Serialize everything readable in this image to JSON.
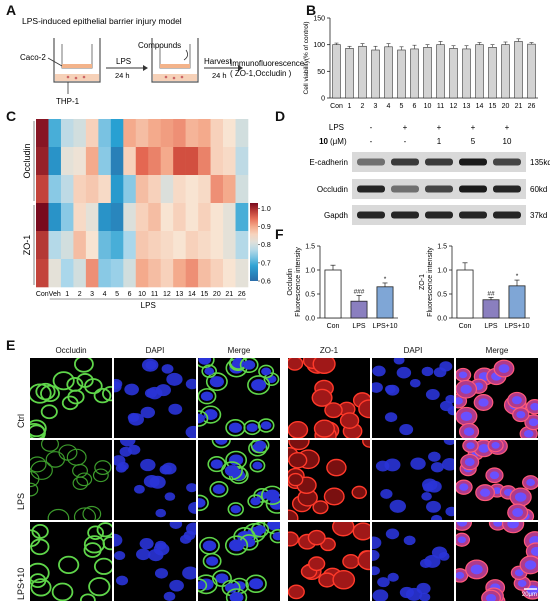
{
  "panel_letters": {
    "a": "A",
    "b": "B",
    "c": "C",
    "d": "D",
    "e": "E",
    "f": "F"
  },
  "panel_a": {
    "title": "LPS-induced epithelial barrier injury model",
    "caco2": "Caco-2",
    "thp1": "THP-1",
    "lps": "LPS",
    "time1": "24 h",
    "compounds": "Compounds",
    "harvest": "Harvest",
    "time2": "24 h",
    "readout1": "Immunofluorescence",
    "readout2": "( ZO-1,Occludin )"
  },
  "panel_b": {
    "chart_data": {
      "type": "bar",
      "ylabel": "Cell viability(% of control)",
      "ylim": [
        0,
        150
      ],
      "yticks": [
        0,
        50,
        100,
        150
      ],
      "categories": [
        "Con",
        "1",
        "2",
        "3",
        "4",
        "5",
        "6",
        "10",
        "11",
        "12",
        "13",
        "14",
        "15",
        "20",
        "21",
        "26"
      ],
      "values": [
        100,
        93,
        97,
        90,
        96,
        90,
        92,
        95,
        100,
        93,
        92,
        100,
        95,
        100,
        106,
        101
      ],
      "errors": [
        3,
        4,
        5,
        7,
        6,
        6,
        7,
        5,
        6,
        5,
        6,
        4,
        5,
        5,
        5,
        3
      ],
      "bar_color": "#d3d3d3"
    }
  },
  "panel_c": {
    "chart_data": {
      "type": "heatmap",
      "x_labels": [
        "Con",
        "Veh",
        "1",
        "2",
        "3",
        "4",
        "5",
        "6",
        "10",
        "11",
        "12",
        "13",
        "14",
        "15",
        "20",
        "21",
        "26"
      ],
      "x_group_label": "LPS",
      "row_groups": [
        "Occludin",
        "ZO-1"
      ],
      "colorbar_ticks": [
        1.0,
        0.9,
        0.8,
        0.7,
        0.6
      ],
      "colorbar_range": [
        0.6,
        1.03
      ],
      "values": [
        [
          1.02,
          0.7,
          0.78,
          0.8,
          0.86,
          0.73,
          0.68,
          0.9,
          0.88,
          0.9,
          0.91,
          0.92,
          0.89,
          0.9,
          0.86,
          0.84,
          0.8
        ],
        [
          1.01,
          0.66,
          0.82,
          0.83,
          0.9,
          0.74,
          0.63,
          0.86,
          0.95,
          0.93,
          0.9,
          0.97,
          0.97,
          0.93,
          0.86,
          0.85,
          0.78
        ],
        [
          0.98,
          0.74,
          0.78,
          0.86,
          0.87,
          0.85,
          0.67,
          0.74,
          0.88,
          0.86,
          0.81,
          0.85,
          0.84,
          0.85,
          0.92,
          0.9,
          0.8
        ],
        [
          1.03,
          0.66,
          0.74,
          0.85,
          0.82,
          0.66,
          0.64,
          0.81,
          0.86,
          0.88,
          0.84,
          0.86,
          0.84,
          0.86,
          0.84,
          0.82,
          0.7
        ],
        [
          0.99,
          0.77,
          0.8,
          0.88,
          0.84,
          0.72,
          0.7,
          0.76,
          0.87,
          0.86,
          0.85,
          0.84,
          0.86,
          0.85,
          0.84,
          0.82,
          0.77
        ],
        [
          0.98,
          0.82,
          0.76,
          0.8,
          0.92,
          0.74,
          0.75,
          0.8,
          0.9,
          0.88,
          0.86,
          0.9,
          0.92,
          0.88,
          0.86,
          0.84,
          0.82
        ]
      ]
    }
  },
  "panel_d": {
    "header_lps": "LPS",
    "header_dose_bold": "10",
    "header_dose_unit": "(μM)",
    "lps_signs": [
      "-",
      "+",
      "+",
      "+",
      "+"
    ],
    "doses": [
      "-",
      "-",
      "1",
      "5",
      "10"
    ],
    "bands": [
      {
        "name": "E-cadherin",
        "size": "135kd",
        "intensity": [
          0.55,
          0.8,
          0.8,
          0.95,
          0.75
        ]
      },
      {
        "name": "Occludin",
        "size": "60kd",
        "intensity": [
          0.9,
          0.55,
          0.75,
          0.95,
          0.9
        ]
      },
      {
        "name": "Gapdh",
        "size": "37kd",
        "intensity": [
          0.9,
          0.9,
          0.9,
          0.9,
          0.9
        ]
      }
    ]
  },
  "panel_f": {
    "charts": [
      {
        "type": "bar",
        "ylabel_line1": "Occludin",
        "ylabel_line2": "Fluorescence intensity",
        "ylim": [
          0,
          1.5
        ],
        "yticks": [
          "0.0",
          "0.5",
          "1.0",
          "1.5"
        ],
        "categories": [
          "Con",
          "LPS",
          "LPS+10"
        ],
        "values": [
          1.0,
          0.35,
          0.65
        ],
        "errors": [
          0.1,
          0.12,
          0.08
        ],
        "sig": [
          "",
          "###",
          "*"
        ],
        "colors": [
          "#ffffff",
          "#8a7fbf",
          "#7fa6d6"
        ]
      },
      {
        "type": "bar",
        "ylabel_line1": "ZO-1",
        "ylabel_line2": "Fluorescence intensity",
        "ylim": [
          0,
          1.5
        ],
        "yticks": [
          "0.0",
          "0.5",
          "1.0",
          "1.5"
        ],
        "categories": [
          "Con",
          "LPS",
          "LPS+10"
        ],
        "values": [
          1.0,
          0.38,
          0.67
        ],
        "errors": [
          0.15,
          0.05,
          0.12
        ],
        "sig": [
          "",
          "##",
          "*"
        ],
        "colors": [
          "#ffffff",
          "#8a7fbf",
          "#7fa6d6"
        ]
      }
    ]
  },
  "panel_e": {
    "columns": [
      "Occludin",
      "DAPI",
      "Merge",
      "ZO-1",
      "DAPI",
      "Merge"
    ],
    "rows": [
      "Ctrl",
      "LPS",
      "LPS+10"
    ],
    "scale_bar": "20μm"
  }
}
